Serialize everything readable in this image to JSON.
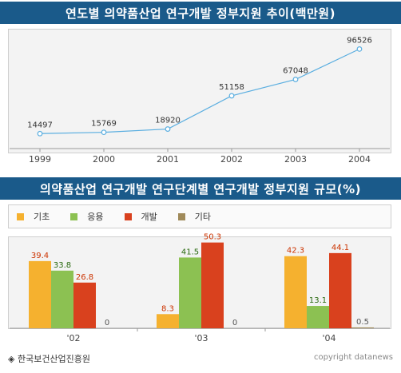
{
  "title1": "연도별 의약품산업 연구개발 정부지원 추이(백만원)",
  "title2": "의약품산업 연구개발 연구단계별 연구개발 정부지원 규모(%)",
  "source": "◈ 한국보건산업진흥원",
  "copyright": "copyright datanews",
  "chart_data": [
    {
      "type": "line",
      "title": "연도별 의약품산업 연구개발 정부지원 추이(백만원)",
      "x": [
        "1999",
        "2000",
        "2001",
        "2002",
        "2003",
        "2004"
      ],
      "series": [
        {
          "values": [
            14497,
            15769,
            18920,
            51158,
            67048,
            96526
          ],
          "color": "#5aaee0"
        }
      ],
      "ylim": [
        0,
        110000
      ],
      "grid": false
    },
    {
      "type": "bar",
      "title": "의약품산업 연구개발 연구단계별 연구개발 정부지원 규모(%)",
      "categories": [
        "'02",
        "'03",
        "'04"
      ],
      "series": [
        {
          "name": "기초",
          "values": [
            39.4,
            8.3,
            42.3
          ],
          "color": "#f5b12f",
          "label_color": "#cc3300"
        },
        {
          "name": "응용",
          "values": [
            33.8,
            41.5,
            13.1
          ],
          "color": "#8cc152",
          "label_color": "#2a6a10"
        },
        {
          "name": "개발",
          "values": [
            26.8,
            50.3,
            44.1
          ],
          "color": "#d9411e",
          "label_color": "#cc3300"
        },
        {
          "name": "기타",
          "values": [
            0,
            0,
            0.5
          ],
          "color": "#a08a5a",
          "label_color": "#555555"
        }
      ],
      "value_labels": [
        [
          "39.4",
          "33.8",
          "26.8",
          "0"
        ],
        [
          "8.3",
          "41.5",
          "50.3",
          "0"
        ],
        [
          "42.3",
          "13.1",
          "44.1",
          "0.5"
        ]
      ],
      "ylim": [
        0,
        52
      ],
      "legend": "top"
    }
  ]
}
